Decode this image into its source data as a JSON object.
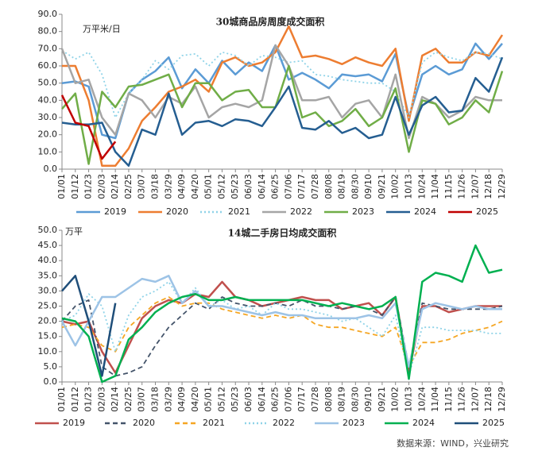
{
  "chart_data": [
    {
      "type": "line",
      "title": "30城商品房周度成交面积",
      "unit_label": "万平米/日",
      "legend": "bottom",
      "categories": [
        "01/01",
        "01/12",
        "01/23",
        "02/03",
        "02/14",
        "02/25",
        "03/07",
        "03/18",
        "03/29",
        "04/09",
        "04/20",
        "05/01",
        "05/12",
        "05/23",
        "06/03",
        "06/14",
        "06/25",
        "07/06",
        "07/17",
        "07/28",
        "08/08",
        "08/19",
        "08/30",
        "09/10",
        "09/21",
        "10/02",
        "10/13",
        "10/24",
        "11/04",
        "11/15",
        "11/26",
        "12/07",
        "12/18",
        "12/29"
      ],
      "ylim": [
        0,
        90
      ],
      "yticks": [
        {
          "value": 0,
          "label": "0.0"
        },
        {
          "value": 10,
          "label": "10.0"
        },
        {
          "value": 20,
          "label": "20.0"
        },
        {
          "value": 30,
          "label": "30.0"
        },
        {
          "value": 40,
          "label": "40.0"
        },
        {
          "value": 50,
          "label": "50.0"
        },
        {
          "value": 60,
          "label": "60.0"
        },
        {
          "value": 70,
          "label": "70.0"
        },
        {
          "value": 80,
          "label": "80.0"
        },
        {
          "value": 90,
          "label": "90.0"
        }
      ],
      "series": [
        {
          "name": "2019",
          "color": "#5b9bd5",
          "dash": "solid",
          "values": [
            50,
            51,
            48,
            20,
            18,
            44,
            52,
            57,
            65,
            47,
            58,
            50,
            63,
            55,
            62,
            57,
            72,
            52,
            56,
            52,
            47,
            55,
            54,
            55,
            51,
            67,
            30,
            55,
            60,
            55,
            58,
            73,
            64,
            73
          ]
        },
        {
          "name": "2020",
          "color": "#ed7d31",
          "dash": "solid",
          "values": [
            60,
            60,
            40,
            2,
            2,
            12,
            28,
            36,
            45,
            48,
            52,
            45,
            62,
            65,
            60,
            62,
            68,
            83,
            65,
            66,
            64,
            61,
            65,
            62,
            60,
            70,
            28,
            66,
            70,
            62,
            62,
            68,
            66,
            78
          ]
        },
        {
          "name": "2021",
          "color": "#8fd3e8",
          "dash": "dotted",
          "values": [
            69,
            64,
            68,
            55,
            30,
            44,
            52,
            63,
            58,
            66,
            67,
            60,
            68,
            66,
            60,
            66,
            65,
            62,
            63,
            55,
            54,
            52,
            51,
            50,
            50,
            45,
            30,
            62,
            68,
            65,
            63,
            68,
            67,
            64
          ]
        },
        {
          "name": "2022",
          "color": "#a5a5a5",
          "dash": "solid",
          "values": [
            70,
            50,
            52,
            30,
            20,
            44,
            40,
            30,
            42,
            38,
            48,
            30,
            36,
            38,
            36,
            40,
            72,
            60,
            40,
            40,
            42,
            30,
            38,
            40,
            30,
            55,
            18,
            42,
            38,
            30,
            34,
            42,
            40,
            40
          ]
        },
        {
          "name": "2023",
          "color": "#70ad47",
          "dash": "solid",
          "values": [
            35,
            44,
            3,
            45,
            36,
            48,
            49,
            52,
            55,
            36,
            50,
            50,
            40,
            45,
            46,
            36,
            36,
            60,
            30,
            33,
            25,
            28,
            35,
            25,
            30,
            47,
            10,
            40,
            38,
            26,
            30,
            40,
            33,
            57
          ]
        },
        {
          "name": "2024",
          "color": "#255e91",
          "dash": "solid",
          "values": [
            27,
            26,
            26,
            27,
            10,
            2,
            23,
            20,
            44,
            20,
            27,
            28,
            25,
            29,
            28,
            25,
            36,
            48,
            24,
            23,
            28,
            21,
            24,
            18,
            20,
            42,
            20,
            37,
            42,
            33,
            34,
            53,
            45,
            65
          ]
        },
        {
          "name": "2025",
          "color": "#c00000",
          "dash": "solid",
          "values": [
            43,
            27,
            25,
            6,
            16,
            null,
            null,
            null,
            null,
            null,
            null,
            null,
            null,
            null,
            null,
            null,
            null,
            null,
            null,
            null,
            null,
            null,
            null,
            null,
            null,
            null,
            null,
            null,
            null,
            null,
            null,
            null,
            null,
            null
          ]
        }
      ]
    },
    {
      "type": "line",
      "title": "14城二手房日均成交面积",
      "unit_label": "万平",
      "legend": "bottom",
      "categories": [
        "01/01",
        "01/12",
        "01/23",
        "02/03",
        "02/14",
        "02/25",
        "03/07",
        "03/18",
        "03/29",
        "04/09",
        "04/20",
        "05/01",
        "05/12",
        "05/23",
        "06/03",
        "06/14",
        "06/25",
        "07/06",
        "07/17",
        "07/28",
        "08/08",
        "08/19",
        "08/30",
        "09/10",
        "09/21",
        "10/02",
        "10/13",
        "10/24",
        "11/04",
        "11/15",
        "11/26",
        "12/07",
        "12/18",
        "12/29"
      ],
      "ylim": [
        0,
        50
      ],
      "yticks": [
        {
          "value": 0,
          "label": "0.0"
        },
        {
          "value": 5,
          "label": "5.0"
        },
        {
          "value": 10,
          "label": "10.0"
        },
        {
          "value": 15,
          "label": "15.0"
        },
        {
          "value": 20,
          "label": "20.0"
        },
        {
          "value": 25,
          "label": "25.0"
        },
        {
          "value": 30,
          "label": "30.0"
        },
        {
          "value": 35,
          "label": "35.0"
        },
        {
          "value": 40,
          "label": "40.0"
        },
        {
          "value": 45,
          "label": "45.0"
        },
        {
          "value": 50,
          "label": "50.0"
        }
      ],
      "series": [
        {
          "name": "2019",
          "color": "#c0504d",
          "dash": "solid",
          "values": [
            20,
            19,
            20,
            10,
            3,
            12,
            21,
            25,
            27,
            26,
            29,
            28,
            33,
            28,
            27,
            25,
            26,
            27,
            28,
            27,
            27,
            24,
            25,
            26,
            22,
            28,
            3,
            25,
            25,
            23,
            24,
            25,
            25,
            25
          ]
        },
        {
          "name": "2020",
          "color": "#44546a",
          "dash": "dashed",
          "values": [
            20,
            25,
            27,
            5,
            2,
            3,
            5,
            12,
            18,
            22,
            26,
            24,
            28,
            26,
            25,
            25,
            26,
            25,
            27,
            25,
            25,
            24,
            25,
            24,
            22,
            28,
            5,
            26,
            25,
            24,
            24,
            24,
            24,
            25
          ]
        },
        {
          "name": "2021",
          "color": "#f5a623",
          "dash": "dashed",
          "values": [
            18,
            19,
            18,
            12,
            10,
            18,
            22,
            26,
            28,
            25,
            26,
            26,
            24,
            23,
            22,
            21,
            22,
            21,
            22,
            19,
            18,
            18,
            17,
            16,
            15,
            18,
            5,
            13,
            13,
            14,
            16,
            17,
            18,
            20
          ]
        },
        {
          "name": "2022",
          "color": "#8fd3e8",
          "dash": "dotted",
          "values": [
            20,
            22,
            29,
            25,
            10,
            22,
            28,
            30,
            33,
            26,
            31,
            25,
            27,
            24,
            25,
            22,
            26,
            24,
            24,
            23,
            22,
            20,
            21,
            18,
            15,
            22,
            2,
            18,
            18,
            17,
            17,
            17,
            16,
            16
          ]
        },
        {
          "name": "2023",
          "color": "#9dc3e6",
          "dash": "solid",
          "values": [
            20,
            12,
            20,
            28,
            28,
            31,
            34,
            33,
            35,
            26,
            30,
            25,
            25,
            24,
            23,
            22,
            23,
            22,
            22,
            21,
            21,
            21,
            21,
            22,
            21,
            26,
            5,
            24,
            26,
            25,
            24,
            25,
            24,
            24
          ]
        },
        {
          "name": "2024",
          "color": "#00b050",
          "dash": "solid",
          "values": [
            21,
            20,
            15,
            0,
            2,
            14,
            18,
            23,
            26,
            28,
            29,
            27,
            27,
            28,
            27,
            27,
            27,
            27,
            27,
            26,
            25,
            26,
            25,
            24,
            25,
            28,
            1,
            33,
            36,
            35,
            33,
            45,
            36,
            37
          ]
        },
        {
          "name": "2025",
          "color": "#1f4e79",
          "dash": "solid",
          "values": [
            30,
            35,
            20,
            2,
            26,
            null,
            null,
            null,
            null,
            null,
            null,
            null,
            null,
            null,
            null,
            null,
            null,
            null,
            null,
            null,
            null,
            null,
            null,
            null,
            null,
            null,
            null,
            null,
            null,
            null,
            null,
            null,
            null,
            null
          ]
        }
      ]
    }
  ],
  "source": "数据来源：WIND，兴业研究"
}
